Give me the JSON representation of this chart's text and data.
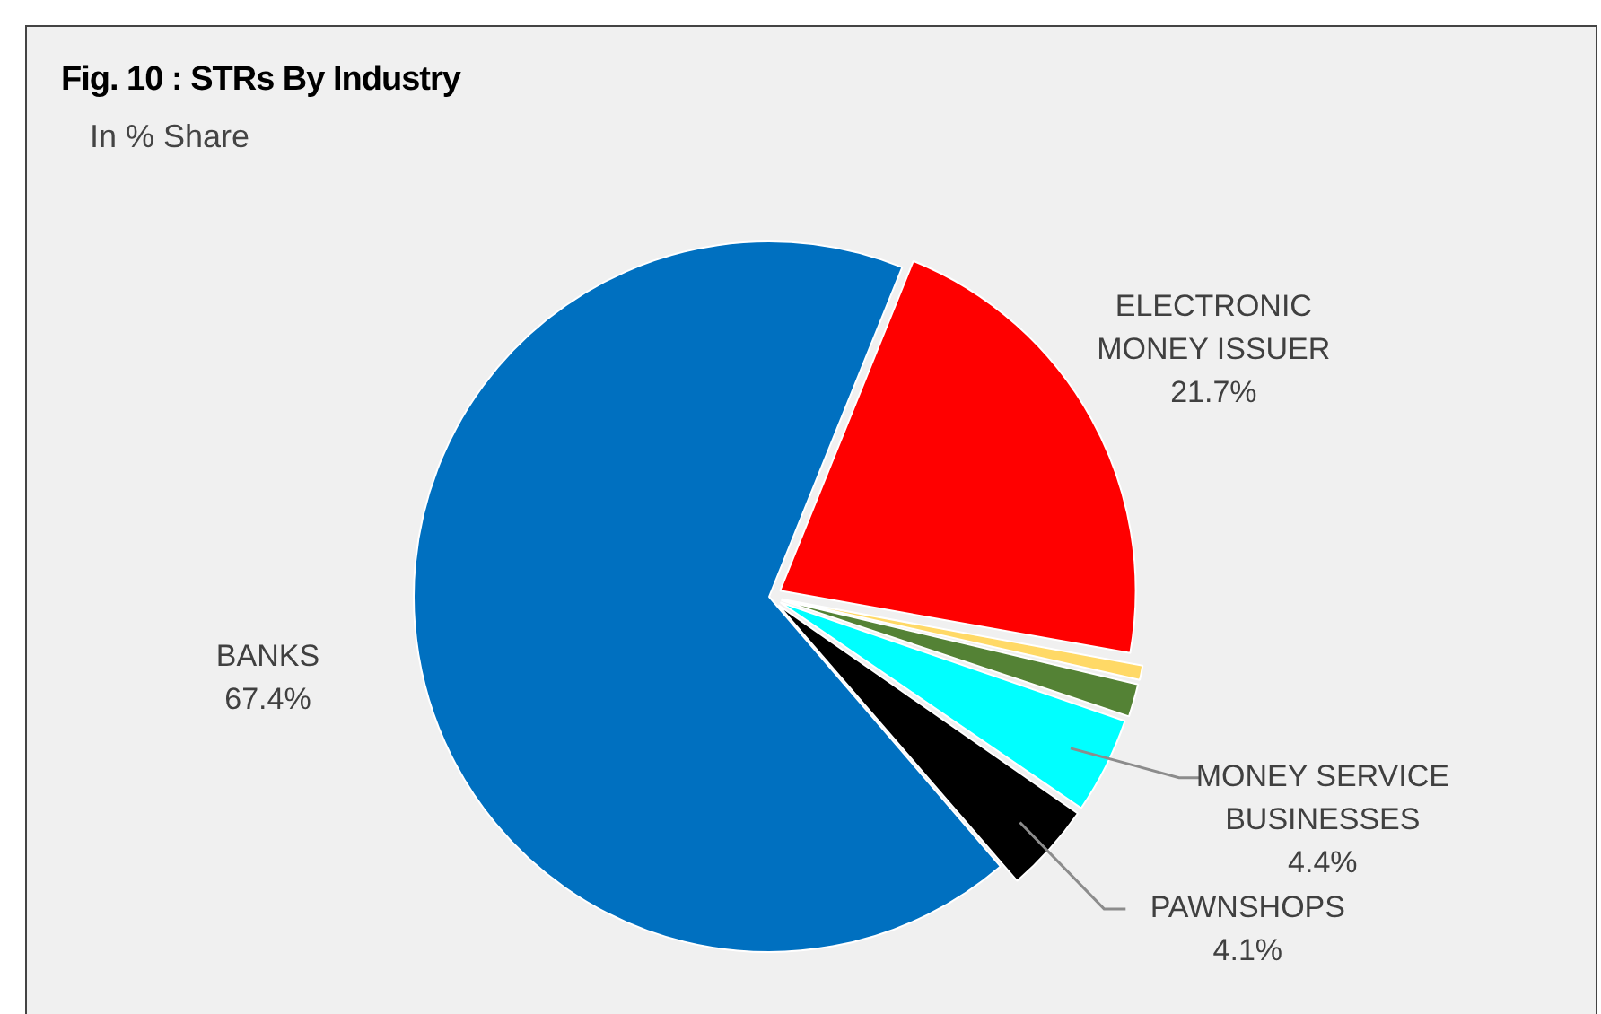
{
  "chart_data": {
    "type": "pie",
    "title": "Fig. 10 : STRs By Industry",
    "subtitle": "In % Share",
    "categories": [
      "ELECTRONIC MONEY ISSUER",
      null,
      null,
      "MONEY SERVICE BUSINESSES",
      "PAWNSHOPS",
      "BANKS"
    ],
    "values": [
      21.7,
      0.8,
      1.6,
      4.4,
      4.1,
      67.4
    ],
    "colors": [
      "#ff0000",
      "#ffd966",
      "#548235",
      "#00ffff",
      "#000000",
      "#0070c0"
    ],
    "value_labels": [
      "21.7%",
      null,
      null,
      "4.4%",
      "4.1%",
      "67.4%"
    ],
    "legend": false
  }
}
